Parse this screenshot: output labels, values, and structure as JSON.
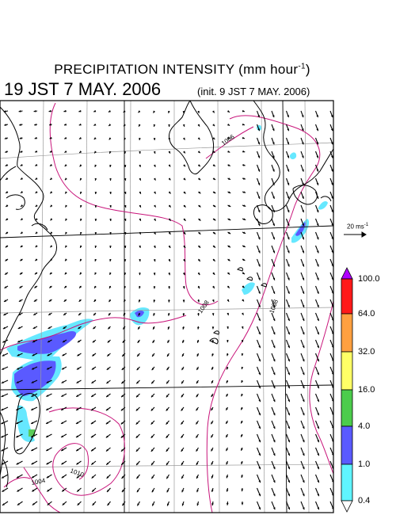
{
  "header": {
    "title": "PRECIPITATION INTENSITY (mm hour",
    "title_sup": "-1",
    "title_close": ")",
    "valid_time": "19 JST 7 MAY. 2006",
    "init_time": "(init. 9 JST 7 MAY. 2006)"
  },
  "wind_scale": {
    "label": "20 ms",
    "label_sup": "-1"
  },
  "isobars": {
    "labels": [
      "1006",
      "1008",
      "1008",
      "1010",
      "1004"
    ]
  },
  "colorbar": {
    "levels": [
      "0.4",
      "1.0",
      "4.0",
      "16.0",
      "32.0",
      "64.0",
      "100.0"
    ],
    "colors": [
      "#5ff5ff",
      "#5a5aff",
      "#4ccc4c",
      "#ffff66",
      "#ffa040",
      "#ff1a1a",
      "#b000ff"
    ]
  },
  "precip_colors": {
    "light": "#66e8ff",
    "medium": "#5a5aff",
    "heavy": "#5acc5a"
  },
  "line_colors": {
    "isobar": "#c8147a",
    "coast": "#000000",
    "grid": "#9a9a9a"
  }
}
